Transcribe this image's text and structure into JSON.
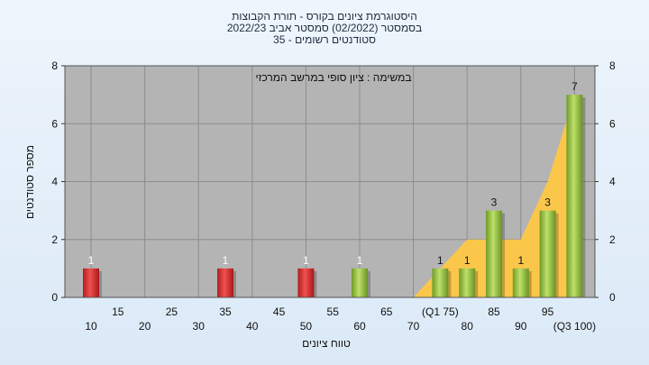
{
  "chart_data": {
    "type": "bar",
    "title_lines": [
      "היסטוגרמת ציונים בקורס - תורת הקבוצות",
      "בסמסטר  (02/2022)  סמסטר אביב 2022/23",
      "סטודנטים רשומים - 35"
    ],
    "annotation": "במשימה : ציון סופי במרשב המרכזי",
    "xlabel": "טווח ציונים",
    "ylabel": "מספר סטודנטים",
    "ylim": [
      0,
      8
    ],
    "y_ticks": [
      "0",
      "2",
      "4",
      "6",
      "8"
    ],
    "grid": true,
    "categories": [
      "10",
      "15",
      "20",
      "25",
      "30",
      "35",
      "40",
      "45",
      "50",
      "55",
      "60",
      "65",
      "70",
      "75",
      "80",
      "85",
      "90",
      "95",
      "100"
    ],
    "x_tick_labels": [
      "10",
      "15",
      "20",
      "25",
      "30",
      "35",
      "40",
      "45",
      "50",
      "55",
      "60",
      "65",
      "70",
      "(Q1 75)",
      "80",
      "85",
      "90",
      "95",
      "(Q3 100)"
    ],
    "values": [
      1,
      0,
      0,
      0,
      0,
      1,
      0,
      0,
      1,
      0,
      1,
      0,
      0,
      1,
      1,
      3,
      1,
      3,
      7
    ],
    "bar_colors": [
      "#e13b3b",
      "",
      "",
      "",
      "",
      "#e13b3b",
      "",
      "",
      "#e13b3b",
      "",
      "#9ccc4a",
      "",
      "",
      "#9ccc4a",
      "#9ccc4a",
      "#9ccc4a",
      "#9ccc4a",
      "#9ccc4a",
      "#9ccc4a"
    ],
    "area_series": {
      "categories": [
        "70",
        "75",
        "80",
        "85",
        "90",
        "95",
        "100"
      ],
      "values": [
        0,
        1,
        2,
        2,
        2,
        4,
        7
      ],
      "color": "#ffc845"
    },
    "colors": {
      "plot_bg": "#b4b4b4",
      "grid": "#8c8c8c",
      "fail": "#e13b3b",
      "pass": "#9ccc4a"
    }
  }
}
